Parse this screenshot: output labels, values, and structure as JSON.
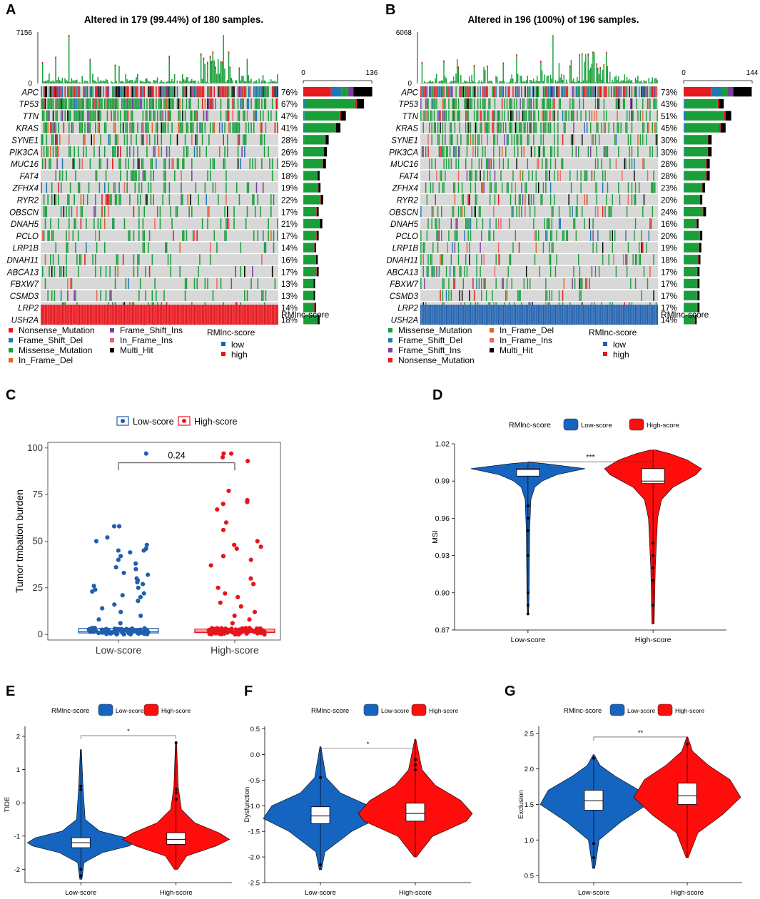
{
  "colors": {
    "missense": "#1a9e3a",
    "nonsense": "#e41a1c",
    "frameshift_del": "#1f78b4",
    "frameshift_ins": "#7b3f9e",
    "inframe_del": "#e0651f",
    "inframe_ins": "#f06262",
    "multi_hit": "#000000",
    "no_alt": "#d8d8d8",
    "low": "#1f5fad",
    "high": "#e8141c",
    "violin_low": "#1565c0",
    "violin_high": "#ff0d0d"
  },
  "chart_data": [
    {
      "panel": "A",
      "type": "heatmap",
      "title": "Altered in 179 (99.44%) of 180 samples.",
      "tmb_max": "7156",
      "tmb_min": "0",
      "bar_axis_min": "0",
      "bar_axis_max": "136",
      "bar_max": 136,
      "sample_count": 180,
      "genes": [
        "APC",
        "TP53",
        "TTN",
        "KRAS",
        "SYNE1",
        "PIK3CA",
        "MUC16",
        "FAT4",
        "ZFHX4",
        "RYR2",
        "OBSCN",
        "DNAH5",
        "PCLO",
        "LRP1B",
        "DNAH11",
        "ABCA13",
        "FBXW7",
        "CSMD3",
        "LRP2",
        "USH2A"
      ],
      "percents": [
        "76%",
        "67%",
        "47%",
        "41%",
        "28%",
        "26%",
        "25%",
        "18%",
        "19%",
        "22%",
        "17%",
        "21%",
        "17%",
        "14%",
        "16%",
        "17%",
        "13%",
        "13%",
        "14%",
        "18%"
      ],
      "freq": [
        0.76,
        0.67,
        0.47,
        0.41,
        0.28,
        0.26,
        0.25,
        0.18,
        0.19,
        0.22,
        0.17,
        0.21,
        0.17,
        0.14,
        0.16,
        0.17,
        0.13,
        0.13,
        0.14,
        0.18
      ],
      "annotation_label": "RMlnc-score",
      "annotation_group": "high",
      "legend": [
        "Nonsense_Mutation",
        "Frame_Shift_Del",
        "Missense_Mutation",
        "In_Frame_Del",
        "Frame_Shift_Ins",
        "In_Frame_Ins",
        "Multi_Hit"
      ],
      "legend_keys": [
        "nonsense",
        "frameshift_del",
        "missense",
        "inframe_del",
        "frameshift_ins",
        "inframe_ins",
        "multi_hit"
      ],
      "score_legend_title": "RMlnc-score",
      "score_legend": [
        "low",
        "high"
      ]
    },
    {
      "panel": "B",
      "type": "heatmap",
      "title": "Altered in 196 (100%) of 196 samples.",
      "tmb_max": "6068",
      "tmb_min": "0",
      "bar_axis_min": "0",
      "bar_axis_max": "144",
      "bar_max": 144,
      "sample_count": 196,
      "genes": [
        "APC",
        "TP53",
        "TTN",
        "KRAS",
        "SYNE1",
        "PIK3CA",
        "MUC16",
        "FAT4",
        "ZFHX4",
        "RYR2",
        "OBSCN",
        "DNAH5",
        "PCLO",
        "LRP1B",
        "DNAH11",
        "ABCA13",
        "FBXW7",
        "CSMD3",
        "LRP2",
        "USH2A"
      ],
      "percents": [
        "73%",
        "43%",
        "51%",
        "45%",
        "30%",
        "30%",
        "28%",
        "28%",
        "23%",
        "20%",
        "24%",
        "16%",
        "20%",
        "19%",
        "18%",
        "17%",
        "17%",
        "17%",
        "17%",
        "14%"
      ],
      "freq": [
        0.73,
        0.43,
        0.51,
        0.45,
        0.3,
        0.3,
        0.28,
        0.28,
        0.23,
        0.2,
        0.24,
        0.16,
        0.2,
        0.19,
        0.18,
        0.17,
        0.17,
        0.17,
        0.17,
        0.14
      ],
      "annotation_label": "RMlnc-score",
      "annotation_group": "low",
      "legend": [
        "Missense_Mutation",
        "Frame_Shift_Del",
        "Frame_Shift_Ins",
        "Nonsense_Mutation",
        "In_Frame_Del",
        "In_Frame_Ins",
        "Multi_Hit"
      ],
      "legend_keys": [
        "missense",
        "frameshift_del",
        "frameshift_ins",
        "nonsense",
        "inframe_del",
        "inframe_ins",
        "multi_hit"
      ],
      "score_legend_title": "RMlnc-score",
      "score_legend": [
        "low",
        "high"
      ]
    },
    {
      "panel": "C",
      "type": "scatter",
      "legend": [
        "Low-score",
        "High-score"
      ],
      "ylabel": "Tumor tmbation burden",
      "categories": [
        "Low-score",
        "High-score"
      ],
      "ylim": [
        -3,
        103
      ],
      "yticks": [
        "0",
        "25",
        "50",
        "75",
        "100"
      ],
      "yticks_val": [
        0,
        25,
        50,
        75,
        100
      ],
      "pvalue": "0.24",
      "series": [
        {
          "name": "Low-score",
          "median": 1.5,
          "q1": 0.8,
          "q3": 3.2,
          "outliers": [
            97,
            58,
            58,
            52,
            50,
            48,
            46,
            45,
            45,
            44,
            42,
            40,
            38,
            36,
            35,
            33,
            32,
            30,
            29,
            28,
            27,
            26,
            25,
            24,
            23,
            22,
            21,
            20,
            18,
            16,
            14,
            12,
            10,
            8,
            6
          ]
        },
        {
          "name": "High-score",
          "median": 1.8,
          "q1": 1.0,
          "q3": 2.8,
          "outliers": [
            97,
            97,
            95,
            93,
            77,
            72,
            71,
            70,
            67,
            60,
            56,
            50,
            48,
            47,
            46,
            42,
            40,
            37,
            30,
            27,
            25,
            22,
            20,
            17,
            15,
            12,
            10,
            8,
            6
          ]
        }
      ]
    },
    {
      "panel": "D",
      "type": "violin",
      "legend_title": "RMlnc-score",
      "legend": [
        "Low-score",
        "High-score"
      ],
      "ylabel": "MSI",
      "categories": [
        "Low-score",
        "High-score"
      ],
      "ylim": [
        0.87,
        1.02
      ],
      "yticks": [
        "0.87",
        "0.90",
        "0.93",
        "0.96",
        "0.99",
        "1.02"
      ],
      "yticks_val": [
        0.87,
        0.9,
        0.93,
        0.96,
        0.99,
        1.02
      ],
      "signif": "***",
      "series": [
        {
          "name": "Low-score",
          "min": 0.883,
          "max": 1.005,
          "q1": 0.994,
          "median": 0.999,
          "q3": 1.0,
          "width_profile": [
            [
              0.883,
              0.01
            ],
            [
              0.9,
              0.02
            ],
            [
              0.95,
              0.03
            ],
            [
              0.975,
              0.05
            ],
            [
              0.985,
              0.12
            ],
            [
              0.99,
              0.25
            ],
            [
              0.995,
              0.5
            ],
            [
              1.0,
              1.0
            ],
            [
              1.004,
              0.3
            ],
            [
              1.005,
              0.05
            ]
          ],
          "outliers": [
            0.883,
            0.89,
            0.9,
            0.93,
            0.95,
            0.96,
            0.97
          ]
        },
        {
          "name": "High-score",
          "min": 0.875,
          "max": 1.015,
          "q1": 0.988,
          "median": 0.99,
          "q3": 1.0,
          "width_profile": [
            [
              0.875,
              0.02
            ],
            [
              0.92,
              0.04
            ],
            [
              0.96,
              0.08
            ],
            [
              0.975,
              0.15
            ],
            [
              0.985,
              0.35
            ],
            [
              0.99,
              0.55
            ],
            [
              0.995,
              0.75
            ],
            [
              1.0,
              0.85
            ],
            [
              1.007,
              0.6
            ],
            [
              1.012,
              0.3
            ],
            [
              1.015,
              0.05
            ]
          ],
          "outliers": [
            0.89,
            0.91,
            0.92,
            0.93,
            0.94
          ]
        }
      ]
    },
    {
      "panel": "E",
      "type": "violin",
      "legend_title": "RMlnc-score",
      "legend": [
        "Low-score",
        "High-score"
      ],
      "ylabel": "TIDE",
      "categories": [
        "Low-score",
        "High-score"
      ],
      "ylim": [
        -2.4,
        2.3
      ],
      "yticks": [
        "-2",
        "-1",
        "0",
        "1",
        "2"
      ],
      "yticks_val": [
        -2,
        -1,
        0,
        1,
        2
      ],
      "signif": "*",
      "series": [
        {
          "name": "Low-score",
          "min": -2.3,
          "max": 1.6,
          "q1": -1.35,
          "median": -1.2,
          "q3": -1.05,
          "width_profile": [
            [
              -2.3,
              0.02
            ],
            [
              -1.8,
              0.06
            ],
            [
              -1.5,
              0.4
            ],
            [
              -1.3,
              0.9
            ],
            [
              -1.2,
              1.0
            ],
            [
              -1.05,
              0.85
            ],
            [
              -0.85,
              0.35
            ],
            [
              -0.5,
              0.08
            ],
            [
              0.5,
              0.04
            ],
            [
              1.6,
              0.01
            ]
          ],
          "outliers": [
            -2.2,
            -2.0,
            0.4,
            0.5
          ]
        },
        {
          "name": "High-score",
          "min": -2.0,
          "max": 1.85,
          "q1": -1.25,
          "median": -1.1,
          "q3": -0.9,
          "width_profile": [
            [
              -2.0,
              0.03
            ],
            [
              -1.6,
              0.2
            ],
            [
              -1.3,
              0.75
            ],
            [
              -1.1,
              1.0
            ],
            [
              -0.9,
              0.8
            ],
            [
              -0.6,
              0.35
            ],
            [
              -0.2,
              0.1
            ],
            [
              0.5,
              0.04
            ],
            [
              1.85,
              0.01
            ]
          ],
          "outliers": [
            0.1,
            0.3,
            0.4,
            1.8
          ]
        }
      ]
    },
    {
      "panel": "F",
      "type": "violin",
      "legend_title": "RMlnc-score",
      "legend": [
        "Low-score",
        "High-score"
      ],
      "ylabel": "Dysfunction",
      "categories": [
        "Low-score",
        "High-score"
      ],
      "ylim": [
        -2.5,
        0.55
      ],
      "yticks": [
        "-2.5",
        "-2.0",
        "-1.5",
        "-1.0",
        "-0.5",
        "0.0",
        "0.5"
      ],
      "yticks_val": [
        -2.5,
        -2.0,
        -1.5,
        -1.0,
        -0.5,
        0.0,
        0.5
      ],
      "signif": "*",
      "series": [
        {
          "name": "Low-score",
          "min": -2.25,
          "max": 0.15,
          "q1": -1.35,
          "median": -1.2,
          "q3": -1.02,
          "width_profile": [
            [
              -2.25,
              0.02
            ],
            [
              -1.9,
              0.08
            ],
            [
              -1.5,
              0.55
            ],
            [
              -1.25,
              1.0
            ],
            [
              -1.0,
              0.85
            ],
            [
              -0.75,
              0.35
            ],
            [
              -0.45,
              0.1
            ],
            [
              0.15,
              0.01
            ]
          ],
          "outliers": [
            -2.15,
            -0.45
          ]
        },
        {
          "name": "High-score",
          "min": -2.0,
          "max": 0.3,
          "q1": -1.3,
          "median": -1.15,
          "q3": -0.95,
          "width_profile": [
            [
              -2.0,
              0.02
            ],
            [
              -1.6,
              0.3
            ],
            [
              -1.3,
              0.9
            ],
            [
              -1.15,
              1.0
            ],
            [
              -0.9,
              0.8
            ],
            [
              -0.6,
              0.35
            ],
            [
              -0.3,
              0.12
            ],
            [
              0.3,
              0.01
            ]
          ],
          "outliers": [
            -0.3,
            -0.2,
            -0.1
          ]
        }
      ]
    },
    {
      "panel": "G",
      "type": "violin",
      "legend_title": "RMlnc-score",
      "legend": [
        "Low-score",
        "High-score"
      ],
      "ylabel": "Exclusion",
      "categories": [
        "Low-score",
        "High-score"
      ],
      "ylim": [
        0.4,
        2.6
      ],
      "yticks": [
        "0.5",
        "1.0",
        "1.5",
        "2.0",
        "2.5"
      ],
      "yticks_val": [
        0.5,
        1.0,
        1.5,
        2.0,
        2.5
      ],
      "signif": "**",
      "series": [
        {
          "name": "Low-score",
          "min": 0.6,
          "max": 2.2,
          "q1": 1.42,
          "median": 1.55,
          "q3": 1.7,
          "width_profile": [
            [
              0.6,
              0.02
            ],
            [
              1.0,
              0.1
            ],
            [
              1.25,
              0.5
            ],
            [
              1.5,
              1.0
            ],
            [
              1.7,
              0.85
            ],
            [
              1.9,
              0.4
            ],
            [
              2.05,
              0.12
            ],
            [
              2.2,
              0.01
            ]
          ],
          "outliers": [
            0.75,
            0.95,
            2.15
          ]
        },
        {
          "name": "High-score",
          "min": 0.75,
          "max": 2.45,
          "q1": 1.5,
          "median": 1.62,
          "q3": 1.8,
          "width_profile": [
            [
              0.75,
              0.02
            ],
            [
              1.1,
              0.2
            ],
            [
              1.35,
              0.65
            ],
            [
              1.6,
              1.0
            ],
            [
              1.85,
              0.8
            ],
            [
              2.05,
              0.4
            ],
            [
              2.25,
              0.1
            ],
            [
              2.45,
              0.01
            ]
          ],
          "outliers": [
            2.35
          ]
        }
      ]
    }
  ]
}
